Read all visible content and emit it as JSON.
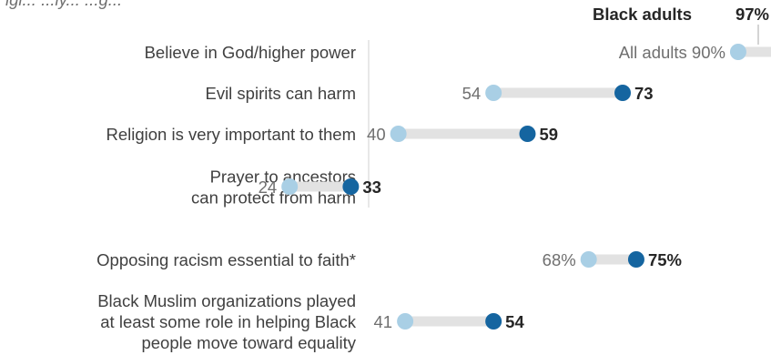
{
  "partial_title": "igi... ...ly... ...g...",
  "header": {
    "black_label": "Black adults",
    "black_value": "97%",
    "all_label": "All adults",
    "all_value": "90%"
  },
  "colors": {
    "all_adults": "#a9cfe5",
    "black_adults": "#1565a0",
    "bar": "#e2e2e2",
    "divider": "#d0d0d0"
  },
  "chart_data": {
    "type": "dot",
    "series": [
      {
        "name": "All adults",
        "color": "#a9cfe5"
      },
      {
        "name": "Black adults",
        "color": "#1565a0"
      }
    ],
    "rows": [
      {
        "label": [
          "Believe in God/higher power"
        ],
        "all": 90,
        "black": 97
      },
      {
        "label": [
          "Evil spirits can harm"
        ],
        "all": 54,
        "black": 73
      },
      {
        "label": [
          "Religion is very important to them"
        ],
        "all": 40,
        "black": 59
      },
      {
        "label": [
          "Prayer to ancestors",
          "can protect from harm"
        ],
        "all": 24,
        "black": 33
      },
      {
        "label": [
          "Opposing racism essential to faith*"
        ],
        "all": 68,
        "black": 75,
        "all_text": "68%",
        "black_text": "75%"
      },
      {
        "label": [
          "Black Muslim organizations played",
          "at least some role in helping Black",
          "people move toward equality"
        ],
        "all": 41,
        "black": 54
      }
    ]
  }
}
